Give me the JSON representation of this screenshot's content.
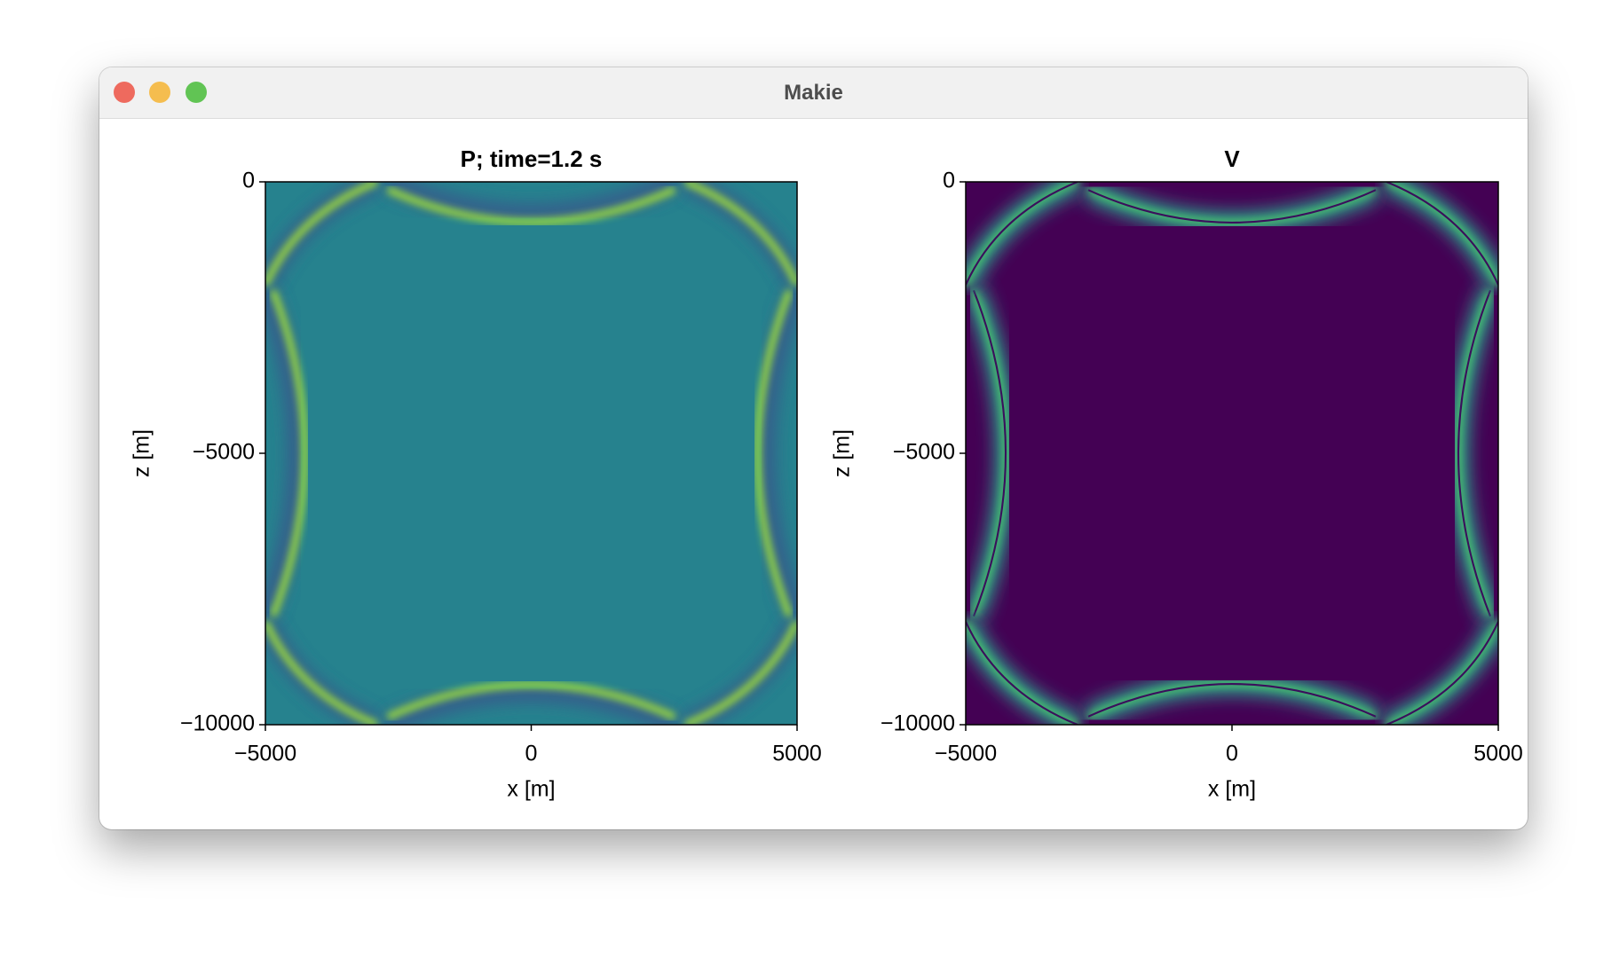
{
  "window": {
    "title": "Makie"
  },
  "plots": [
    {
      "type": "heatmap",
      "title": "P; time=1.2 s",
      "xlabel": "x [m]",
      "ylabel": "z [m]",
      "xlim": [
        -5000,
        5000
      ],
      "ylim": [
        -10000,
        0
      ],
      "xticks": [
        {
          "value": -5000,
          "label": "−5000"
        },
        0,
        5000
      ],
      "yticks": [
        0,
        {
          "value": -5000,
          "label": "−5000"
        },
        {
          "value": -10000,
          "label": "−10000"
        }
      ],
      "colormap": "viridis"
    },
    {
      "type": "heatmap",
      "title": "V",
      "xlabel": "x [m]",
      "ylabel": "z [m]",
      "xlim": [
        -5000,
        5000
      ],
      "ylim": [
        -10000,
        0
      ],
      "xticks": [
        {
          "value": -5000,
          "label": "−5000"
        },
        0,
        5000
      ],
      "yticks": [
        0,
        {
          "value": -5000,
          "label": "−5000"
        },
        {
          "value": -10000,
          "label": "−10000"
        }
      ],
      "colormap": "viridis"
    }
  ]
}
